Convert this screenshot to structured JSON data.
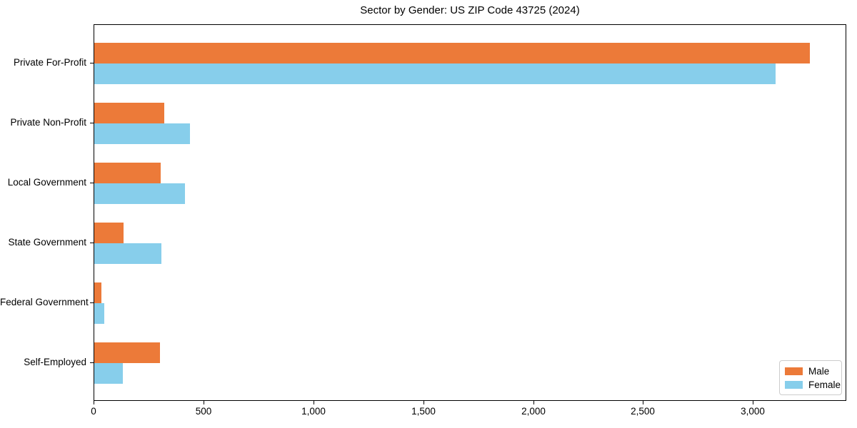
{
  "chart_data": {
    "type": "bar",
    "orientation": "horizontal",
    "title": "Sector by Gender: US ZIP Code 43725 (2024)",
    "categories": [
      "Private For-Profit",
      "Private Non-Profit",
      "Local Government",
      "State Government",
      "Federal Government",
      "Self-Employed"
    ],
    "series": [
      {
        "name": "Male",
        "color": "#ec7a39",
        "values": [
          3255,
          318,
          302,
          133,
          32,
          298
        ]
      },
      {
        "name": "Female",
        "color": "#87ceeb",
        "values": [
          3100,
          435,
          412,
          305,
          45,
          130
        ]
      }
    ],
    "xlabel": "",
    "ylabel": "",
    "xlim": [
      0,
      3418
    ],
    "xticks": [
      0,
      500,
      1000,
      1500,
      2000,
      2500,
      3000
    ],
    "xtick_labels": [
      "0",
      "500",
      "1,000",
      "1,500",
      "2,000",
      "2,500",
      "3,000"
    ],
    "grid": false,
    "background": "#ffffff",
    "spine_color": "#000000",
    "legend": {
      "position": "lower right",
      "entries": [
        "Male",
        "Female"
      ]
    }
  }
}
